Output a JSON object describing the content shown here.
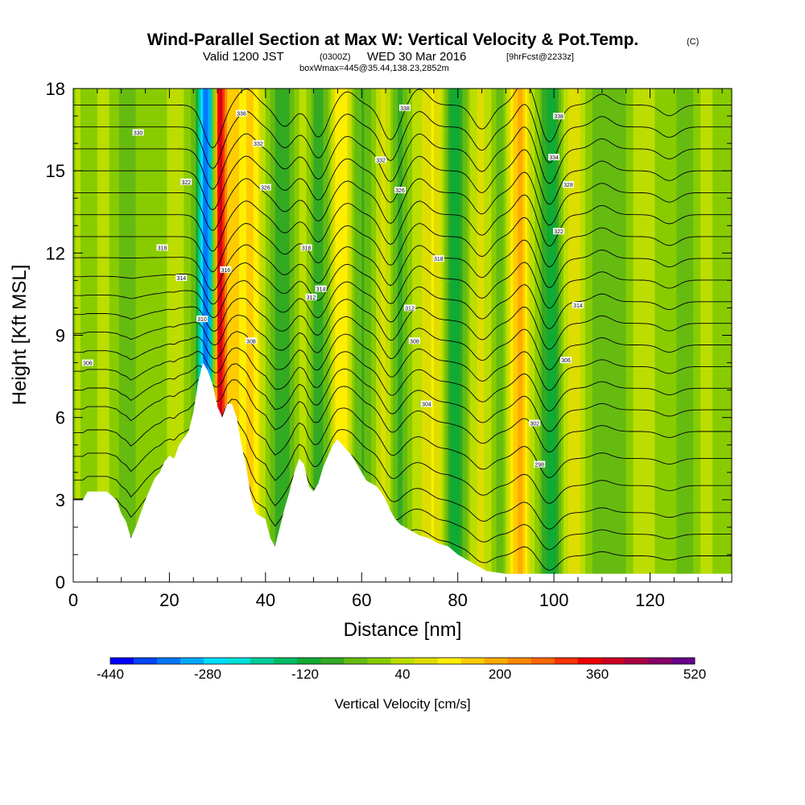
{
  "chart_data": {
    "type": "heatmap",
    "title": "Wind-Parallel Section at Max W: Vertical Velocity & Pot.Temp.",
    "title_mark": "(C)",
    "subtitle_valid": "Valid 1200 JST",
    "subtitle_utc": "(0300Z)",
    "subtitle_date": "WED 30 Mar 2016",
    "subtitle_fcst": "[9hrFcst@2233z]",
    "subtitle_box": "boxWmax=445@35.44,138.23,2852m",
    "xlabel": "Distance [nm]",
    "ylabel": "Height [Kft MSL]",
    "xlim": [
      0,
      137
    ],
    "ylim": [
      0,
      18
    ],
    "x_ticks": [
      0,
      20,
      40,
      60,
      80,
      100,
      120
    ],
    "y_ticks": [
      0,
      3,
      6,
      9,
      12,
      15,
      18
    ],
    "colorbar": {
      "label": "Vertical Velocity [cm/s]",
      "min": -440,
      "max": 520,
      "step": 40,
      "tick_labels": [
        -440,
        -280,
        -120,
        40,
        200,
        360,
        520
      ],
      "colors": [
        "#0000ff",
        "#0044ff",
        "#0077ff",
        "#00aaff",
        "#00ddff",
        "#00e0d8",
        "#00cc99",
        "#00bb66",
        "#11aa33",
        "#33aa22",
        "#66bb11",
        "#88cc00",
        "#bbdd00",
        "#dddd00",
        "#ffee00",
        "#ffcc00",
        "#ffaa00",
        "#ff8800",
        "#ff6600",
        "#ff3300",
        "#ee0000",
        "#cc0022",
        "#aa0044",
        "#880066",
        "#660088"
      ]
    },
    "terrain_kft": [
      [
        0,
        3.0
      ],
      [
        2,
        3.0
      ],
      [
        3,
        3.3
      ],
      [
        7,
        3.3
      ],
      [
        9,
        3.0
      ],
      [
        10,
        2.5
      ],
      [
        11,
        2.2
      ],
      [
        12,
        1.6
      ],
      [
        13,
        2.0
      ],
      [
        14,
        2.5
      ],
      [
        15,
        3.0
      ],
      [
        16,
        3.4
      ],
      [
        17,
        3.8
      ],
      [
        18,
        4.0
      ],
      [
        19,
        4.4
      ],
      [
        20,
        4.6
      ],
      [
        21,
        4.5
      ],
      [
        22,
        5.0
      ],
      [
        24,
        5.5
      ],
      [
        25,
        6.2
      ],
      [
        26,
        7.3
      ],
      [
        27,
        8.0
      ],
      [
        28,
        7.7
      ],
      [
        29,
        7.2
      ],
      [
        30,
        6.4
      ],
      [
        31,
        6.0
      ],
      [
        32,
        6.5
      ],
      [
        33,
        6.5
      ],
      [
        34,
        6.0
      ],
      [
        35,
        5.0
      ],
      [
        36,
        4.2
      ],
      [
        37,
        3.1
      ],
      [
        38,
        2.5
      ],
      [
        40,
        2.3
      ],
      [
        41,
        1.6
      ],
      [
        42,
        1.3
      ],
      [
        43,
        2.0
      ],
      [
        44,
        2.7
      ],
      [
        45,
        3.3
      ],
      [
        46,
        4.0
      ],
      [
        47,
        4.5
      ],
      [
        48,
        4.3
      ],
      [
        49,
        3.5
      ],
      [
        50,
        3.3
      ],
      [
        51,
        3.6
      ],
      [
        52,
        4.2
      ],
      [
        53,
        4.6
      ],
      [
        54,
        5.0
      ],
      [
        55,
        5.2
      ],
      [
        56,
        5.0
      ],
      [
        57,
        4.8
      ],
      [
        58,
        4.6
      ],
      [
        59,
        4.3
      ],
      [
        60,
        4.0
      ],
      [
        61,
        3.7
      ],
      [
        62,
        3.6
      ],
      [
        63,
        3.5
      ],
      [
        64,
        3.3
      ],
      [
        65,
        3.0
      ],
      [
        66,
        2.6
      ],
      [
        67,
        2.3
      ],
      [
        68,
        2.1
      ],
      [
        69,
        2.0
      ],
      [
        70,
        1.9
      ],
      [
        72,
        1.7
      ],
      [
        74,
        1.6
      ],
      [
        76,
        1.4
      ],
      [
        78,
        1.3
      ],
      [
        80,
        1.0
      ],
      [
        82,
        0.8
      ],
      [
        84,
        0.6
      ],
      [
        86,
        0.4
      ],
      [
        90,
        0.3
      ],
      [
        137,
        0.3
      ]
    ],
    "velocity_features": [
      {
        "x": 30.5,
        "w": 1.6,
        "v": 470
      },
      {
        "x": 28.4,
        "w": 1.6,
        "v": -320
      },
      {
        "x": 27.0,
        "w": 1.4,
        "v": -170
      },
      {
        "x": 33.5,
        "w": 1.2,
        "v": 140
      },
      {
        "x": 37.0,
        "w": 2.2,
        "v": 140
      },
      {
        "x": 42.5,
        "w": 2.4,
        "v": -80
      },
      {
        "x": 48.0,
        "w": 2.0,
        "v": 60
      },
      {
        "x": 51.0,
        "w": 2.4,
        "v": -90
      },
      {
        "x": 56.0,
        "w": 2.8,
        "v": 90
      },
      {
        "x": 60.0,
        "w": 2.5,
        "v": -60
      },
      {
        "x": 65.0,
        "w": 2.2,
        "v": 110
      },
      {
        "x": 68.0,
        "w": 2.0,
        "v": -100
      },
      {
        "x": 75.0,
        "w": 3.5,
        "v": 90
      },
      {
        "x": 79.0,
        "w": 2.5,
        "v": -110
      },
      {
        "x": 85.0,
        "w": 3.0,
        "v": 70
      },
      {
        "x": 89.0,
        "w": 2.0,
        "v": -90
      },
      {
        "x": 93.0,
        "w": 2.2,
        "v": 200
      },
      {
        "x": 99.5,
        "w": 2.0,
        "v": -110
      },
      {
        "x": 104.0,
        "w": 3.0,
        "v": 60
      },
      {
        "x": 110.0,
        "w": 3.0,
        "v": -60
      },
      {
        "x": 118.0,
        "w": 4.0,
        "v": 40
      },
      {
        "x": 125.0,
        "w": 3.0,
        "v": -50
      },
      {
        "x": 132.0,
        "w": 3.0,
        "v": 40
      }
    ],
    "contour_levels_kft": [
      0.8,
      1.6,
      2.4,
      3.4,
      4.4,
      5.4,
      6.2,
      7.0,
      7.8,
      8.6,
      9.4,
      10.2,
      11.0,
      11.8,
      12.6,
      13.4,
      14.2,
      15.0,
      15.8,
      16.6,
      17.4
    ],
    "contour_labels": [
      {
        "x": 3.0,
        "y": 8.0,
        "text": "306"
      },
      {
        "x": 13.5,
        "y": 16.4,
        "text": "330"
      },
      {
        "x": 23.5,
        "y": 14.6,
        "text": "322"
      },
      {
        "x": 18.5,
        "y": 12.2,
        "text": "318"
      },
      {
        "x": 22.5,
        "y": 11.1,
        "text": "314"
      },
      {
        "x": 26.8,
        "y": 9.6,
        "text": "310"
      },
      {
        "x": 31.7,
        "y": 11.4,
        "text": "316"
      },
      {
        "x": 35.0,
        "y": 17.1,
        "text": "336"
      },
      {
        "x": 38.5,
        "y": 16.0,
        "text": "332"
      },
      {
        "x": 40.0,
        "y": 14.4,
        "text": "326"
      },
      {
        "x": 48.5,
        "y": 12.2,
        "text": "318"
      },
      {
        "x": 51.5,
        "y": 10.7,
        "text": "314"
      },
      {
        "x": 49.5,
        "y": 10.4,
        "text": "312"
      },
      {
        "x": 37.0,
        "y": 8.8,
        "text": "308"
      },
      {
        "x": 64.0,
        "y": 15.4,
        "text": "332"
      },
      {
        "x": 68.0,
        "y": 14.3,
        "text": "326"
      },
      {
        "x": 69.0,
        "y": 17.3,
        "text": "338"
      },
      {
        "x": 76.0,
        "y": 11.8,
        "text": "318"
      },
      {
        "x": 70.0,
        "y": 10.0,
        "text": "312"
      },
      {
        "x": 71.0,
        "y": 8.8,
        "text": "308"
      },
      {
        "x": 73.5,
        "y": 6.5,
        "text": "304"
      },
      {
        "x": 101.0,
        "y": 17.0,
        "text": "338"
      },
      {
        "x": 100.0,
        "y": 15.5,
        "text": "334"
      },
      {
        "x": 103.0,
        "y": 14.5,
        "text": "328"
      },
      {
        "x": 101.0,
        "y": 12.8,
        "text": "322"
      },
      {
        "x": 105.0,
        "y": 10.1,
        "text": "314"
      },
      {
        "x": 102.5,
        "y": 8.1,
        "text": "306"
      },
      {
        "x": 96.0,
        "y": 5.8,
        "text": "302"
      },
      {
        "x": 97.0,
        "y": 4.3,
        "text": "298"
      }
    ]
  }
}
